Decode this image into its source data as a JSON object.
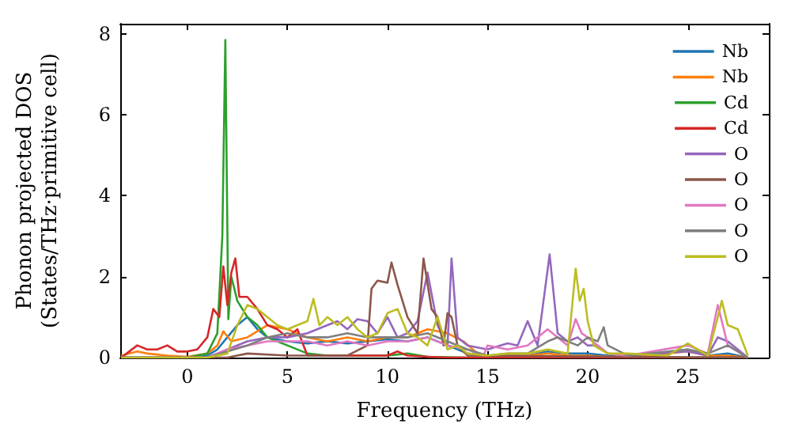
{
  "chart_data": {
    "type": "line",
    "xlabel": "Frequency (THz)",
    "ylabel": "Phonon projected DOS\n(States/THz·primitive cell)",
    "xlim": [
      -3.35,
      29.05
    ],
    "ylim": [
      0,
      8.25
    ],
    "xticks": [
      0,
      5,
      10,
      15,
      20,
      25
    ],
    "yticks": [
      0,
      2,
      4,
      6,
      8
    ],
    "grid": false,
    "legend": "top right",
    "marker": "none",
    "line_style": "solid",
    "series": [
      {
        "name": "Nb",
        "color": "#1f77b4",
        "x": [
          -3.3,
          0,
          1,
          1.5,
          2,
          2.5,
          3,
          3.5,
          4,
          5,
          6,
          7,
          8,
          9,
          10,
          11,
          12,
          13,
          14,
          15,
          16,
          17,
          18,
          19,
          20,
          21,
          22,
          25,
          26,
          27,
          28
        ],
        "values": [
          0,
          0,
          0.05,
          0.2,
          0.5,
          0.8,
          1.0,
          0.7,
          0.5,
          0.4,
          0.35,
          0.4,
          0.35,
          0.4,
          0.45,
          0.4,
          0.5,
          0.3,
          0.1,
          0.05,
          0.05,
          0.05,
          0.15,
          0.1,
          0.1,
          0.05,
          0,
          0.2,
          0.05,
          0.1,
          0
        ]
      },
      {
        "name": "Nb",
        "color": "#ff7f0e",
        "x": [
          -3.3,
          -2.5,
          -2,
          -1,
          0,
          1,
          1.5,
          1.8,
          2.2,
          3,
          4,
          5,
          6,
          7,
          8,
          9,
          10,
          11,
          12,
          13,
          13.8,
          14.5,
          15,
          16,
          17,
          18,
          19,
          20,
          21,
          22,
          25,
          26,
          27,
          28
        ],
        "values": [
          0.05,
          0.15,
          0.1,
          0.05,
          0.02,
          0.1,
          0.3,
          0.65,
          0.4,
          0.5,
          0.8,
          0.7,
          0.5,
          0.4,
          0.5,
          0.4,
          0.5,
          0.5,
          0.7,
          0.6,
          0.4,
          0.1,
          0.05,
          0.05,
          0.05,
          0.1,
          0.05,
          0.05,
          0.02,
          0,
          0.15,
          0.05,
          0.05,
          0
        ]
      },
      {
        "name": "Cd",
        "color": "#2ca02c",
        "x": [
          -3.3,
          0,
          1,
          1.5,
          1.75,
          1.9,
          2.05,
          2.2,
          2.5,
          3,
          3.5,
          4,
          5,
          6,
          7,
          10,
          11,
          12,
          14,
          28
        ],
        "values": [
          0,
          0,
          0.1,
          0.6,
          3.0,
          7.85,
          0.95,
          2.0,
          1.4,
          1.0,
          0.8,
          0.5,
          0.3,
          0.1,
          0.05,
          0.05,
          0.1,
          0.02,
          0,
          0
        ]
      },
      {
        "name": "Cd",
        "color": "#d62728",
        "x": [
          -3.3,
          -2.5,
          -2,
          -1.5,
          -1,
          -0.5,
          0,
          0.5,
          1,
          1.3,
          1.6,
          1.8,
          2.0,
          2.2,
          2.4,
          2.6,
          3,
          3.5,
          4,
          4.5,
          5,
          5.5,
          6,
          7,
          8,
          9,
          10,
          10.5,
          11,
          12,
          13,
          15,
          20,
          28
        ],
        "values": [
          0,
          0.3,
          0.2,
          0.2,
          0.3,
          0.15,
          0.15,
          0.2,
          0.5,
          1.2,
          1.0,
          2.25,
          1.3,
          2.1,
          2.45,
          1.5,
          1.5,
          1.2,
          0.8,
          0.7,
          0.5,
          0.7,
          0.05,
          0.05,
          0.05,
          0.05,
          0.05,
          0.15,
          0.05,
          0.02,
          0,
          0,
          0,
          0
        ]
      },
      {
        "name": "O",
        "color": "#9467bd",
        "x": [
          -3.3,
          0,
          1,
          1.5,
          2,
          3,
          4,
          5,
          6,
          7,
          7.5,
          8,
          8.5,
          9,
          9.5,
          10,
          10.5,
          11,
          11.5,
          12,
          12.5,
          13,
          13.2,
          13.5,
          14,
          15,
          16,
          16.5,
          17,
          17.5,
          18.1,
          18.5,
          19,
          19.5,
          20,
          20.5,
          21,
          22,
          25,
          26,
          26.5,
          27,
          28
        ],
        "values": [
          0,
          0,
          0,
          0.1,
          0.2,
          0.4,
          0.5,
          0.5,
          0.6,
          0.8,
          0.9,
          0.7,
          0.95,
          0.9,
          0.6,
          1.0,
          0.5,
          0.6,
          0.9,
          2.1,
          0.8,
          0.3,
          2.45,
          0.5,
          0.3,
          0.2,
          0.35,
          0.3,
          0.9,
          0.3,
          2.55,
          0.6,
          0.4,
          0.5,
          0.3,
          0.3,
          0.1,
          0.05,
          0.15,
          0.05,
          0.5,
          0.4,
          0
        ]
      },
      {
        "name": "O",
        "color": "#8c564b",
        "x": [
          -3.3,
          2,
          3,
          5,
          8,
          9,
          9.2,
          9.5,
          10,
          10.2,
          10.5,
          11,
          11.5,
          11.8,
          12.2,
          12.5,
          12.8,
          13,
          13.2,
          13.5,
          14,
          28
        ],
        "values": [
          0,
          0,
          0.1,
          0.05,
          0.05,
          0.3,
          1.7,
          1.9,
          1.85,
          2.35,
          1.8,
          1.0,
          0.6,
          2.45,
          1.2,
          1.0,
          0.3,
          1.1,
          1.0,
          0.3,
          0.05,
          0
        ]
      },
      {
        "name": "O",
        "color": "#e377c2",
        "x": [
          -3.3,
          1,
          2,
          3,
          4,
          5,
          6,
          7,
          8,
          9,
          10,
          11,
          12,
          13,
          14,
          14.8,
          15,
          16,
          17,
          18,
          19,
          19.4,
          19.7,
          20,
          20.5,
          21,
          22,
          25,
          26,
          26.5,
          26.7,
          27,
          28
        ],
        "values": [
          0,
          0,
          0.2,
          0.3,
          0.4,
          0.4,
          0.4,
          0.3,
          0.4,
          0.3,
          0.4,
          0.4,
          0.5,
          0.3,
          0.2,
          0.05,
          0.3,
          0.2,
          0.3,
          0.7,
          0.3,
          0.95,
          0.6,
          0.5,
          0.3,
          0.1,
          0.05,
          0.3,
          0.1,
          1.3,
          0.9,
          0.3,
          0
        ]
      },
      {
        "name": "O",
        "color": "#7f7f7f",
        "x": [
          -3.3,
          1,
          2,
          3,
          4,
          5,
          6,
          7,
          8,
          9,
          10,
          11,
          12,
          13,
          14,
          15,
          16,
          17,
          18,
          18.5,
          19,
          19.5,
          20,
          20.5,
          20.8,
          21,
          22,
          25,
          26,
          27,
          28
        ],
        "values": [
          0,
          0,
          0.15,
          0.3,
          0.5,
          0.6,
          0.5,
          0.5,
          0.6,
          0.5,
          0.5,
          0.5,
          0.6,
          0.4,
          0.2,
          0.05,
          0.1,
          0.1,
          0.4,
          0.5,
          0.4,
          0.3,
          0.5,
          0.4,
          0.75,
          0.3,
          0.05,
          0.2,
          0.1,
          0.3,
          0
        ]
      },
      {
        "name": "O",
        "color": "#bcbd22",
        "x": [
          -3.3,
          1,
          2,
          2.5,
          3,
          3.5,
          4,
          4.5,
          5,
          5.5,
          6,
          6.3,
          6.6,
          7,
          7.5,
          8,
          8.5,
          9,
          9.5,
          10,
          10.5,
          11,
          11.5,
          12,
          12.5,
          13,
          13.5,
          14,
          15,
          16,
          17,
          18,
          19,
          19.4,
          19.6,
          19.8,
          20,
          20.3,
          21,
          22,
          24,
          25,
          25.5,
          26,
          26.5,
          26.7,
          27,
          27.5,
          28
        ],
        "values": [
          0,
          0,
          0.1,
          0.8,
          1.3,
          1.2,
          1.0,
          0.8,
          0.7,
          0.8,
          0.9,
          1.45,
          0.8,
          1.0,
          0.8,
          1.0,
          0.7,
          0.5,
          0.6,
          1.1,
          1.2,
          0.6,
          0.5,
          0.3,
          1.0,
          0.2,
          0.3,
          0.1,
          0.05,
          0.1,
          0.1,
          0.2,
          0.1,
          2.2,
          1.4,
          1.7,
          0.9,
          0.3,
          0.1,
          0.1,
          0.05,
          0.35,
          0.2,
          0.05,
          1.0,
          1.4,
          0.8,
          0.7,
          0.05
        ]
      }
    ]
  }
}
